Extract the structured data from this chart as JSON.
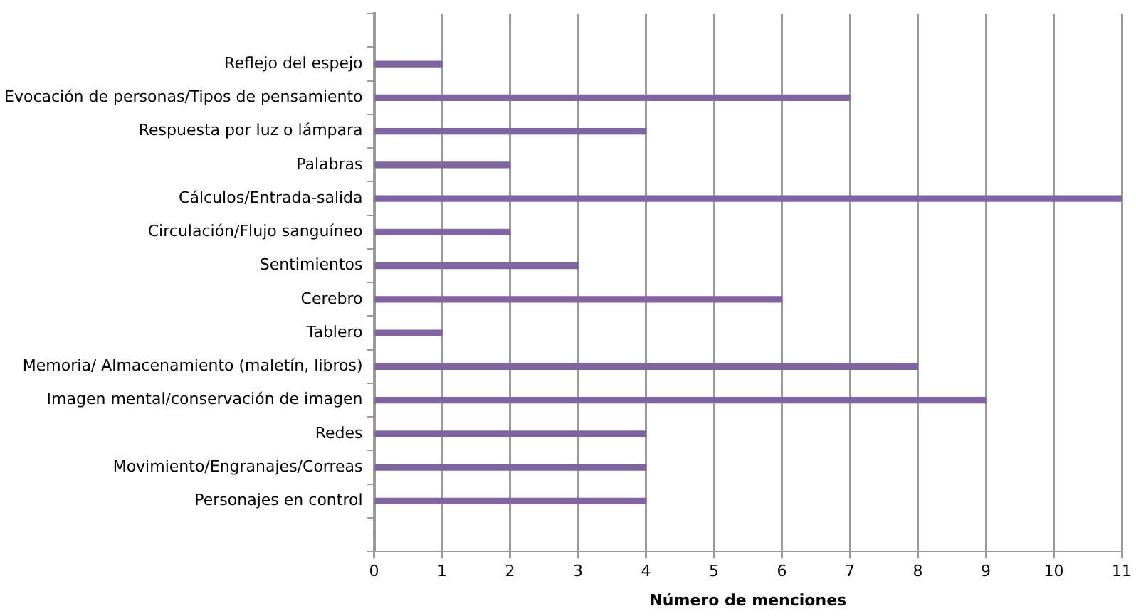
{
  "chart_data": {
    "type": "bar",
    "orientation": "horizontal",
    "xlabel": "Número de menciones",
    "categories": [
      null,
      "Reflejo del espejo",
      "Evocación de personas/Tipos de pensamiento",
      "Respuesta por luz o lámpara",
      "Palabras",
      "Cálculos/Entrada-salida",
      "Circulación/Flujo sanguíneo",
      "Sentimientos",
      "Cerebro",
      "Tablero",
      "Memoria/ Almacenamiento (maletín, libros)",
      "Imagen mental/conservación de imagen",
      "Redes",
      "Movimiento/Engranajes/Correas",
      "Personajes en control",
      null
    ],
    "values": [
      null,
      1,
      7,
      4,
      2,
      11,
      2,
      3,
      6,
      1,
      8,
      9,
      4,
      4,
      4,
      0
    ],
    "color": "#8064a2",
    "xlim": [
      0,
      11
    ],
    "xticks": [
      0,
      1,
      2,
      3,
      4,
      5,
      6,
      7,
      8,
      9,
      10,
      11
    ],
    "grid": "x",
    "legend": false
  }
}
